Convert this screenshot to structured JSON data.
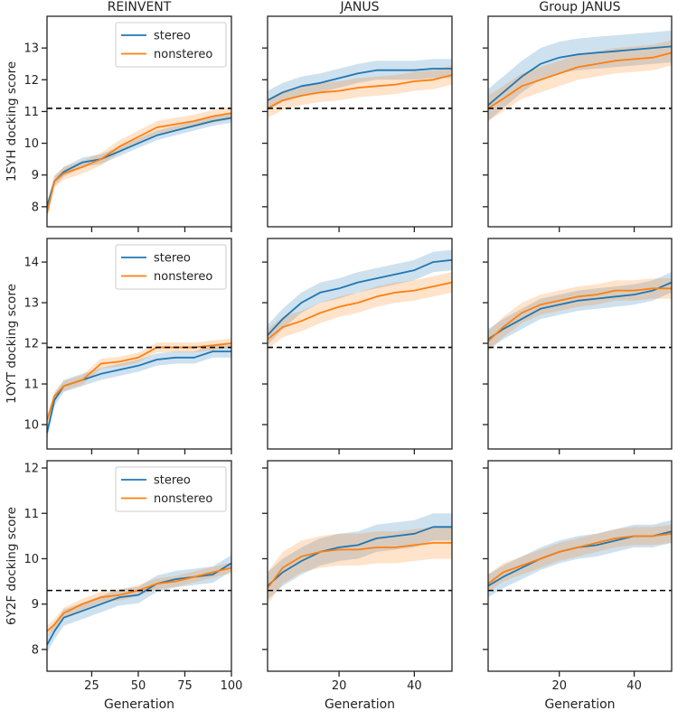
{
  "chart_data": {
    "type": "line",
    "layout": "3x3 grid",
    "column_titles": [
      "REINVENT",
      "JANUS",
      "Group JANUS"
    ],
    "row_ylabels": [
      "1SYH docking score",
      "1OYT docking score",
      "6Y2F docking score"
    ],
    "xlabel": "Generation",
    "legend": {
      "entries": [
        "stereo",
        "nonstereo"
      ],
      "placement": "upper-right of left column"
    },
    "colors": {
      "stereo": "#1f77b4",
      "nonstereo": "#ff7f0e",
      "reference": "#000000"
    },
    "columns_x": [
      {
        "xlim": [
          1,
          100
        ],
        "xticks": [
          25,
          50,
          75,
          100
        ],
        "x": [
          1,
          5,
          10,
          20,
          30,
          40,
          50,
          60,
          70,
          80,
          90,
          100
        ]
      },
      {
        "xlim": [
          1,
          50
        ],
        "xticks": [
          20,
          40
        ],
        "x": [
          1,
          5,
          10,
          15,
          20,
          25,
          30,
          35,
          40,
          45,
          50
        ]
      },
      {
        "xlim": [
          1,
          50
        ],
        "xticks": [
          20,
          40
        ],
        "x": [
          1,
          5,
          10,
          15,
          20,
          25,
          30,
          35,
          40,
          45,
          50
        ]
      }
    ],
    "rows": [
      {
        "ylim": [
          7.37,
          14.0
        ],
        "yticks": [
          8,
          9,
          10,
          11,
          12,
          13
        ],
        "reference_line": 11.1,
        "panels": [
          {
            "series": [
              {
                "name": "stereo",
                "values": [
                  8.0,
                  8.8,
                  9.1,
                  9.4,
                  9.5,
                  9.75,
                  10.0,
                  10.25,
                  10.4,
                  10.55,
                  10.7,
                  10.8
                ],
                "band": 0.15
              },
              {
                "name": "nonstereo",
                "values": [
                  7.8,
                  8.8,
                  9.05,
                  9.25,
                  9.5,
                  9.9,
                  10.2,
                  10.5,
                  10.6,
                  10.7,
                  10.85,
                  10.95
                ],
                "band": 0.2
              }
            ]
          },
          {
            "series": [
              {
                "name": "stereo",
                "values": [
                  11.35,
                  11.6,
                  11.8,
                  11.9,
                  12.05,
                  12.2,
                  12.3,
                  12.3,
                  12.3,
                  12.35,
                  12.35
                ],
                "band": 0.3
              },
              {
                "name": "nonstereo",
                "values": [
                  11.1,
                  11.35,
                  11.5,
                  11.6,
                  11.65,
                  11.75,
                  11.8,
                  11.85,
                  11.95,
                  12.0,
                  12.15
                ],
                "band": 0.3
              }
            ]
          },
          {
            "series": [
              {
                "name": "stereo",
                "values": [
                  11.2,
                  11.6,
                  12.1,
                  12.5,
                  12.7,
                  12.8,
                  12.85,
                  12.9,
                  12.95,
                  13.0,
                  13.05
                ],
                "band": 0.5
              },
              {
                "name": "nonstereo",
                "values": [
                  11.1,
                  11.4,
                  11.8,
                  12.0,
                  12.2,
                  12.4,
                  12.5,
                  12.6,
                  12.65,
                  12.7,
                  12.85
                ],
                "band": 0.4
              }
            ]
          }
        ]
      },
      {
        "ylim": [
          9.4,
          14.58
        ],
        "yticks": [
          10,
          11,
          12,
          13,
          14
        ],
        "reference_line": 11.9,
        "panels": [
          {
            "series": [
              {
                "name": "stereo",
                "values": [
                  9.8,
                  10.6,
                  10.95,
                  11.1,
                  11.25,
                  11.35,
                  11.45,
                  11.6,
                  11.65,
                  11.65,
                  11.8,
                  11.8
                ],
                "band": 0.15
              },
              {
                "name": "nonstereo",
                "values": [
                  10.1,
                  10.7,
                  10.95,
                  11.1,
                  11.5,
                  11.55,
                  11.65,
                  11.9,
                  11.9,
                  11.9,
                  11.95,
                  12.0
                ],
                "band": 0.12
              }
            ]
          },
          {
            "series": [
              {
                "name": "stereo",
                "values": [
                  12.2,
                  12.6,
                  13.0,
                  13.25,
                  13.35,
                  13.5,
                  13.6,
                  13.7,
                  13.8,
                  14.0,
                  14.05
                ],
                "band": 0.25
              },
              {
                "name": "nonstereo",
                "values": [
                  12.1,
                  12.4,
                  12.55,
                  12.75,
                  12.9,
                  13.0,
                  13.15,
                  13.25,
                  13.3,
                  13.4,
                  13.5
                ],
                "band": 0.25
              }
            ]
          },
          {
            "series": [
              {
                "name": "stereo",
                "values": [
                  12.1,
                  12.35,
                  12.6,
                  12.85,
                  12.95,
                  13.05,
                  13.1,
                  13.15,
                  13.2,
                  13.3,
                  13.5
                ],
                "band": 0.25
              },
              {
                "name": "nonstereo",
                "values": [
                  12.05,
                  12.4,
                  12.75,
                  12.95,
                  13.05,
                  13.15,
                  13.2,
                  13.3,
                  13.3,
                  13.35,
                  13.35
                ],
                "band": 0.25
              }
            ]
          }
        ]
      },
      {
        "ylim": [
          7.52,
          12.16
        ],
        "yticks": [
          8,
          9,
          10,
          11,
          12
        ],
        "reference_line": 9.3,
        "panels": [
          {
            "series": [
              {
                "name": "stereo",
                "values": [
                  8.1,
                  8.4,
                  8.7,
                  8.85,
                  9.0,
                  9.15,
                  9.2,
                  9.45,
                  9.55,
                  9.6,
                  9.65,
                  9.9
                ],
                "band": 0.18
              },
              {
                "name": "nonstereo",
                "values": [
                  8.4,
                  8.55,
                  8.8,
                  9.0,
                  9.15,
                  9.2,
                  9.3,
                  9.45,
                  9.5,
                  9.6,
                  9.7,
                  9.8
                ],
                "band": 0.12
              }
            ]
          },
          {
            "series": [
              {
                "name": "stereo",
                "values": [
                  9.4,
                  9.7,
                  9.95,
                  10.15,
                  10.25,
                  10.3,
                  10.45,
                  10.5,
                  10.55,
                  10.7,
                  10.7
                ],
                "band": 0.3
              },
              {
                "name": "nonstereo",
                "values": [
                  9.35,
                  9.8,
                  10.05,
                  10.15,
                  10.2,
                  10.2,
                  10.25,
                  10.25,
                  10.3,
                  10.35,
                  10.35
                ],
                "band": 0.35
              }
            ]
          },
          {
            "series": [
              {
                "name": "stereo",
                "values": [
                  9.4,
                  9.6,
                  9.8,
                  10.0,
                  10.15,
                  10.25,
                  10.3,
                  10.4,
                  10.5,
                  10.5,
                  10.6
                ],
                "band": 0.25
              },
              {
                "name": "nonstereo",
                "values": [
                  9.45,
                  9.7,
                  9.85,
                  10.0,
                  10.15,
                  10.25,
                  10.35,
                  10.45,
                  10.5,
                  10.5,
                  10.55
                ],
                "band": 0.2
              }
            ]
          }
        ]
      }
    ]
  }
}
